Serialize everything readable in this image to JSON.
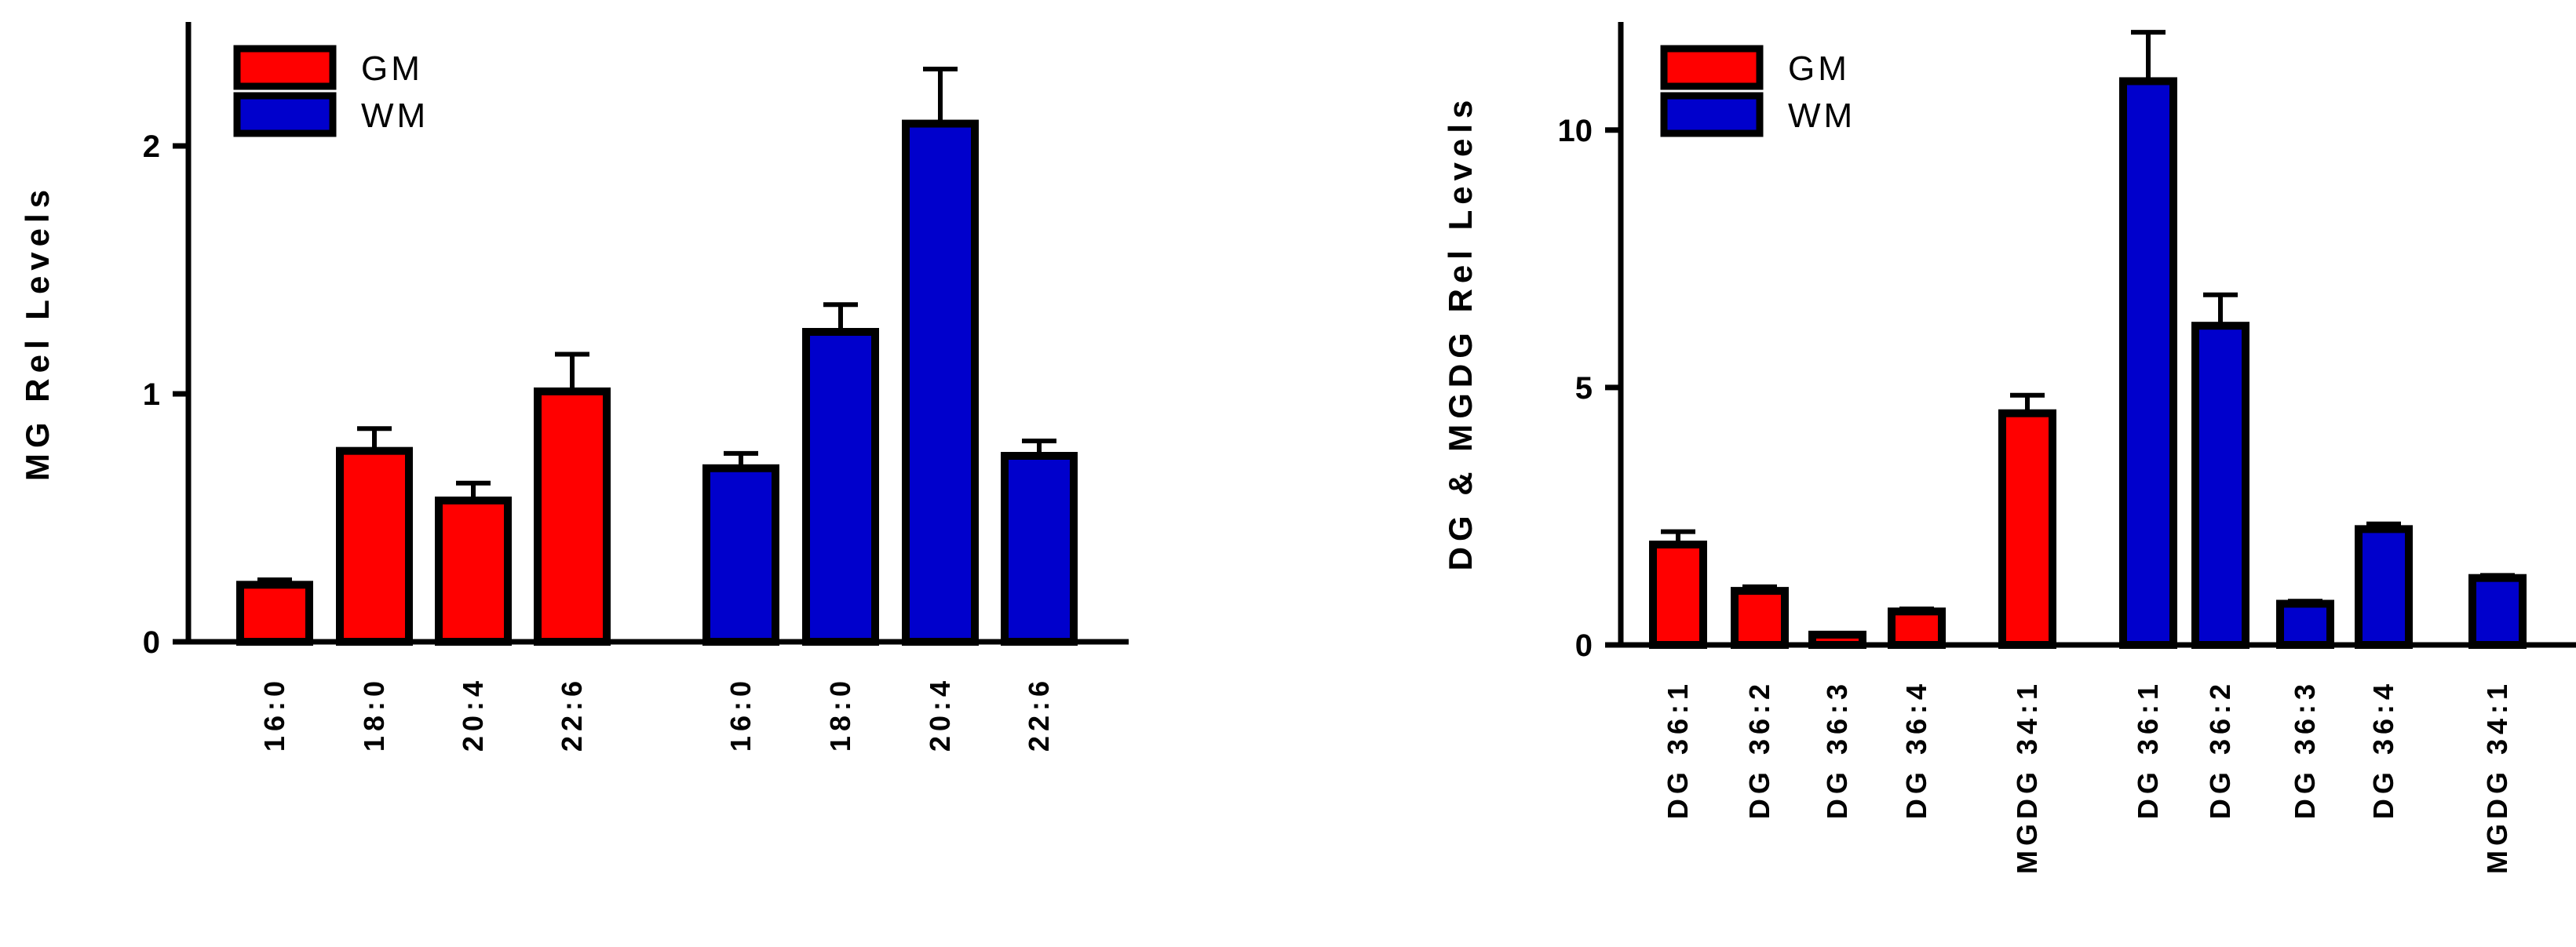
{
  "colors": {
    "GM": "#ff0000",
    "WM": "#0000cc",
    "stroke": "#000000"
  },
  "chart_data": [
    {
      "type": "bar",
      "ylabel": "MG Rel Levels",
      "ylim": [
        0,
        2.5
      ],
      "yticks": [
        0,
        1,
        2
      ],
      "legend": {
        "placement": "top-left",
        "entries": [
          "GM",
          "WM"
        ]
      },
      "groups": [
        {
          "series": "GM",
          "categories": [
            "16:0",
            "18:0",
            "20:4",
            "22:6"
          ],
          "values": [
            0.23,
            0.77,
            0.57,
            1.01
          ],
          "errors": [
            0.02,
            0.09,
            0.07,
            0.15
          ]
        },
        {
          "series": "WM",
          "categories": [
            "16:0",
            "18:0",
            "20:4",
            "22:6"
          ],
          "values": [
            0.7,
            1.25,
            2.09,
            0.75
          ],
          "errors": [
            0.06,
            0.11,
            0.22,
            0.06
          ]
        }
      ]
    },
    {
      "type": "bar",
      "ylabel": "DG & MGDG Rel Levels",
      "ylim": [
        0,
        12.1
      ],
      "yticks": [
        0,
        5,
        10
      ],
      "legend": {
        "placement": "top-left",
        "entries": [
          "GM",
          "WM"
        ]
      },
      "groups": [
        {
          "series": "GM",
          "categories": [
            "DG 36:1",
            "DG 36:2",
            "DG 36:3",
            "DG 36:4"
          ],
          "values": [
            1.95,
            1.05,
            0.2,
            0.65
          ],
          "errors": [
            0.25,
            0.08,
            0.02,
            0.05
          ]
        },
        {
          "series": "GM",
          "categories": [
            "MGDG 34:1"
          ],
          "values": [
            4.5
          ],
          "errors": [
            0.35
          ]
        },
        {
          "series": "WM",
          "categories": [
            "DG 36:1",
            "DG 36:2",
            "DG 36:3",
            "DG 36:4"
          ],
          "values": [
            10.95,
            6.2,
            0.8,
            2.25
          ],
          "errors": [
            0.95,
            0.6,
            0.05,
            0.1
          ]
        },
        {
          "series": "WM",
          "categories": [
            "MGDG 34:1"
          ],
          "values": [
            1.3
          ],
          "errors": [
            0.05
          ]
        }
      ]
    }
  ]
}
